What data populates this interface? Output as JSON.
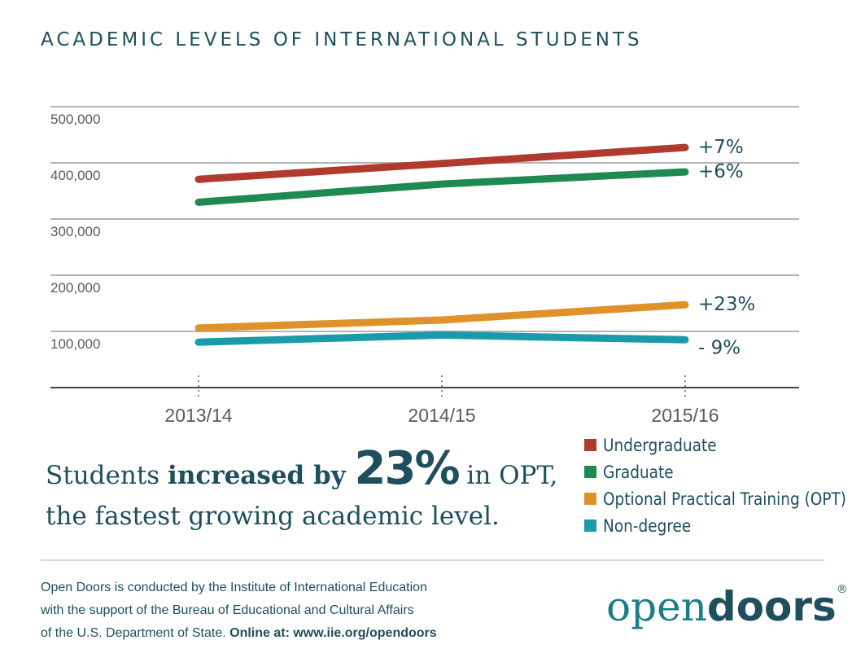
{
  "header": {
    "title": "ACADEMIC LEVELS OF INTERNATIONAL STUDENTS"
  },
  "chart_data": {
    "type": "line",
    "title": "ACADEMIC LEVELS OF INTERNATIONAL STUDENTS",
    "x": [
      "2013/14",
      "2014/15",
      "2015/16"
    ],
    "ylim": [
      0,
      500000
    ],
    "yticks": [
      100000,
      200000,
      300000,
      400000,
      500000
    ],
    "ytick_labels": [
      "100,000",
      "200,000",
      "300,000",
      "400,000",
      "500,000"
    ],
    "grid": true,
    "series": [
      {
        "name": "Undergraduate",
        "color": "#b03a2e",
        "values": [
          370724,
          398824,
          427313
        ],
        "change_label": "+7%"
      },
      {
        "name": "Graduate",
        "color": "#1e8a52",
        "values": [
          329854,
          362228,
          383935
        ],
        "change_label": "+6%"
      },
      {
        "name": "Optional Practical Training (OPT)",
        "color": "#e0922a",
        "values": [
          105997,
          120287,
          147498
        ],
        "change_label": "+23%"
      },
      {
        "name": "Non-degree",
        "color": "#1b9aaa",
        "values": [
          80888,
          93587,
          85093
        ],
        "change_label": "- 9%"
      }
    ]
  },
  "headline": {
    "part1": "Students ",
    "bold": "increased by ",
    "big": "23%",
    "part2": " in OPT,",
    "line2": "the fastest growing academic level."
  },
  "footer": {
    "line1": "Open Doors is conducted by the Institute of International Education",
    "line2": "with the support of the Bureau of Educational and Cultural Affairs",
    "line3_prefix": "of the U.S. Department of State. ",
    "line3_bold": "Online at: www.iie.org/opendoors"
  },
  "logo": {
    "part1": "open",
    "part2": "doors",
    "mark": "®"
  }
}
